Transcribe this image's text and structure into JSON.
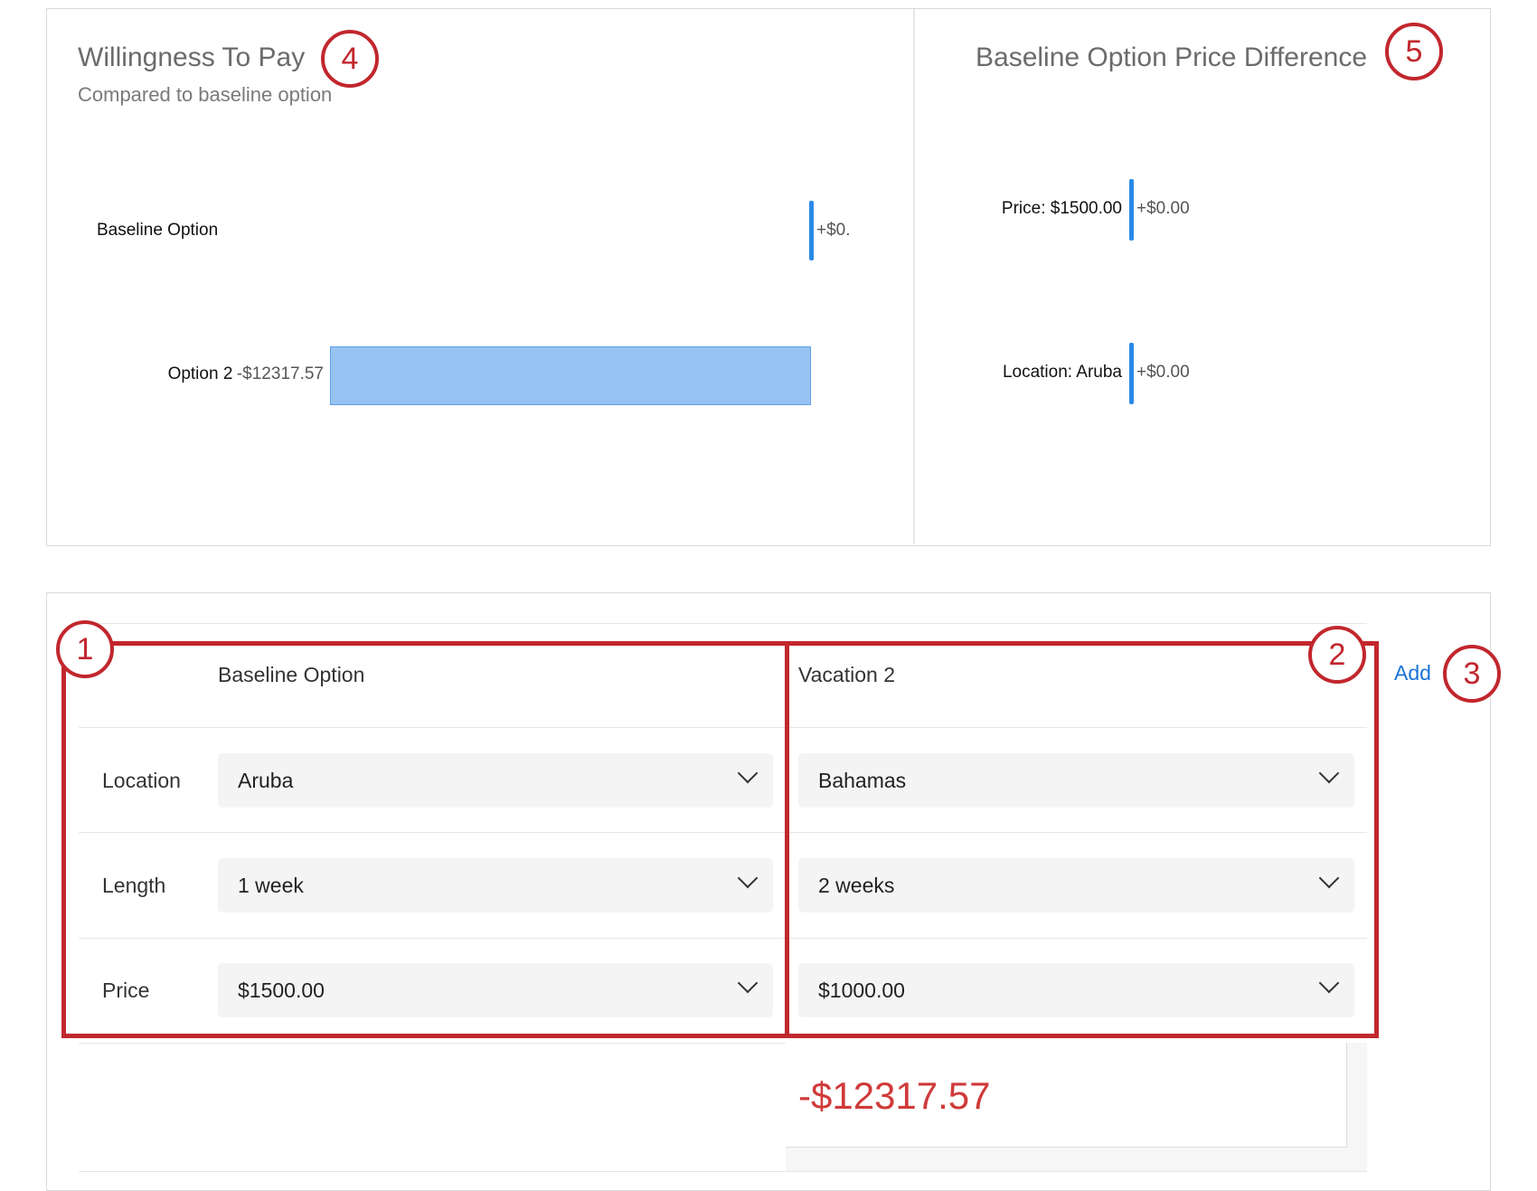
{
  "wtp": {
    "title": "Willingness To Pay",
    "subtitle": "Compared to baseline option",
    "callout": "4"
  },
  "diff": {
    "title": "Baseline Option Price Difference",
    "callout": "5"
  },
  "chart_data": [
    {
      "type": "bar",
      "orientation": "horizontal",
      "title": "Willingness To Pay",
      "subtitle": "Compared to baseline option",
      "categories": [
        "Baseline Option",
        "Option 2"
      ],
      "values": [
        0,
        -12317.57
      ],
      "labels": [
        "+$0.",
        "-$12317.57"
      ],
      "colors": {
        "bar": "#97c3f2",
        "zero_line": "#2a8ae8"
      }
    },
    {
      "type": "bar",
      "orientation": "horizontal",
      "title": "Baseline Option Price Difference",
      "categories": [
        "Price: $1500.00",
        "Location: Aruba"
      ],
      "values": [
        0,
        0
      ],
      "labels": [
        "+$0.00",
        "+$0.00"
      ],
      "colors": {
        "zero_line": "#2a8ae8"
      }
    }
  ],
  "table": {
    "columns": [
      {
        "header": "Baseline Option",
        "callout": "1"
      },
      {
        "header": "Vacation 2",
        "callout": "2"
      }
    ],
    "add_label": "Add",
    "add_callout": "3",
    "rows": [
      {
        "label": "Location",
        "values": [
          "Aruba",
          "Bahamas"
        ]
      },
      {
        "label": "Length",
        "values": [
          "1 week",
          "2 weeks"
        ]
      },
      {
        "label": "Price",
        "values": [
          "$1500.00",
          "$1000.00"
        ]
      }
    ],
    "result": "-$12317.57"
  },
  "colors": {
    "accent_red": "#c1272d",
    "negative": "#d03a3a",
    "link": "#1a73d9"
  }
}
